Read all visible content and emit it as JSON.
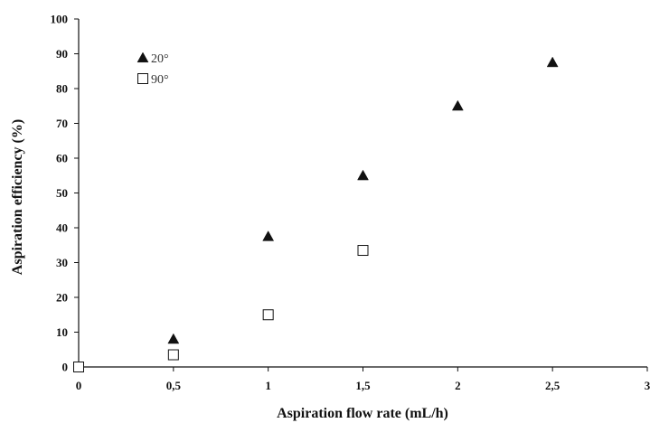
{
  "chart_data": {
    "type": "scatter",
    "xlabel": "Aspiration flow rate (mL/h)",
    "ylabel": "Aspiration efficiency (%)",
    "xlim": [
      0,
      3
    ],
    "ylim": [
      0,
      100
    ],
    "x_ticks": [
      0,
      0.5,
      1,
      1.5,
      2,
      2.5,
      3
    ],
    "x_tick_labels": [
      "0",
      "0,5",
      "1",
      "1,5",
      "2",
      "2,5",
      "3"
    ],
    "y_ticks": [
      0,
      10,
      20,
      30,
      40,
      50,
      60,
      70,
      80,
      90,
      100
    ],
    "y_tick_labels": [
      "0",
      "10",
      "20",
      "30",
      "40",
      "50",
      "60",
      "70",
      "80",
      "90",
      "100"
    ],
    "grid": false,
    "legend_position": "top-left",
    "series": [
      {
        "name": "20°",
        "marker": "filled-triangle",
        "color": "#111111",
        "points": [
          {
            "x": 0.5,
            "y": 8
          },
          {
            "x": 1,
            "y": 37.5
          },
          {
            "x": 1.5,
            "y": 55
          },
          {
            "x": 2,
            "y": 75
          },
          {
            "x": 2.5,
            "y": 87.5
          }
        ]
      },
      {
        "name": "90°",
        "marker": "open-square",
        "color": "#111111",
        "points": [
          {
            "x": 0,
            "y": 0
          },
          {
            "x": 0.5,
            "y": 3.5
          },
          {
            "x": 1,
            "y": 15
          },
          {
            "x": 1.5,
            "y": 33.5
          }
        ]
      }
    ]
  }
}
